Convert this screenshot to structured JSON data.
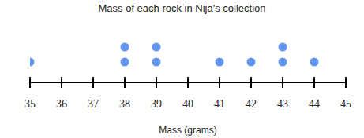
{
  "chart_data": {
    "type": "dot",
    "title": "Mass of each rock in Nija's collection",
    "x_label": "Mass (grams)",
    "x": [
      35,
      38,
      39,
      41,
      42,
      43,
      44
    ],
    "values": [
      1,
      2,
      2,
      1,
      1,
      2,
      1
    ],
    "color": "#6495ed",
    "xlim": [
      35,
      45
    ],
    "xticks": [
      35,
      36,
      37,
      38,
      39,
      40,
      41,
      42,
      43,
      44,
      45
    ],
    "tick_labels": "x"
  }
}
